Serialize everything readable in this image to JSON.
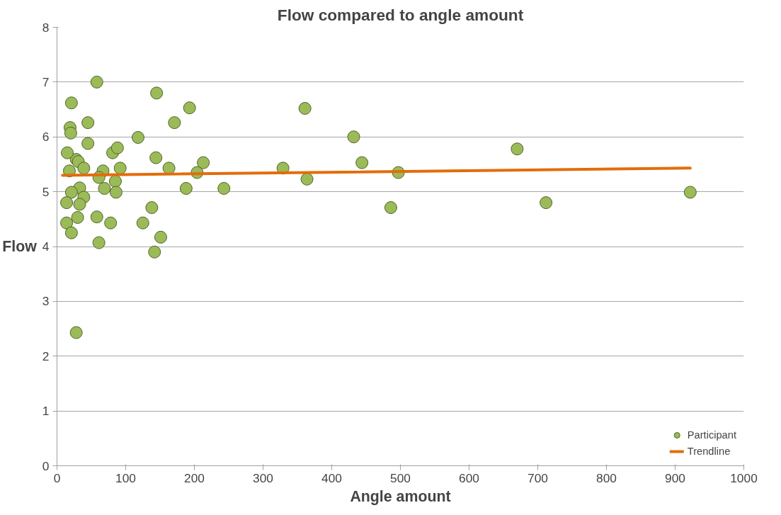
{
  "chart_data": {
    "type": "scatter",
    "title": "Flow compared to angle amount",
    "xlabel": "Angle amount",
    "ylabel": "Flow",
    "xlim": [
      0,
      1000
    ],
    "xticks": [
      0,
      100,
      200,
      300,
      400,
      500,
      600,
      700,
      800,
      900,
      1000
    ],
    "ylim": [
      0,
      8
    ],
    "yticks": [
      0,
      1,
      2,
      3,
      4,
      5,
      6,
      7,
      8
    ],
    "grid": "y",
    "legend": "bottom right",
    "series": [
      {
        "name": "Participant",
        "marker": "circle",
        "color": "#9bbb59",
        "x": [
          28,
          31,
          39,
          18,
          67,
          61,
          85,
          69,
          86,
          33,
          21,
          39,
          14,
          33,
          30,
          14,
          21,
          58,
          78,
          61,
          28,
          58,
          21,
          19,
          20,
          45,
          45,
          15,
          81,
          88,
          92,
          118,
          145,
          171,
          193,
          144,
          163,
          213,
          204,
          188,
          138,
          125,
          151,
          142,
          243,
          329,
          361,
          364,
          432,
          444,
          497,
          486,
          670,
          712,
          922
        ],
        "values": [
          5.59,
          5.55,
          5.43,
          5.38,
          5.38,
          5.26,
          5.19,
          5.06,
          4.99,
          5.07,
          4.99,
          4.9,
          4.8,
          4.77,
          4.53,
          4.43,
          4.25,
          4.54,
          4.43,
          4.07,
          2.43,
          7.0,
          6.62,
          6.17,
          6.07,
          6.26,
          5.88,
          5.71,
          5.71,
          5.8,
          5.43,
          5.99,
          6.8,
          6.26,
          6.53,
          5.62,
          5.43,
          5.53,
          5.35,
          5.06,
          4.71,
          4.43,
          4.17,
          3.9,
          5.06,
          5.43,
          6.52,
          5.23,
          6.0,
          5.53,
          5.35,
          4.71,
          5.78,
          4.8,
          4.99
        ]
      },
      {
        "name": "Trendline",
        "type": "line",
        "line_style": "solid",
        "color": "#e46c0a",
        "x": [
          8,
          922
        ],
        "values": [
          5.3,
          5.43
        ]
      }
    ]
  }
}
